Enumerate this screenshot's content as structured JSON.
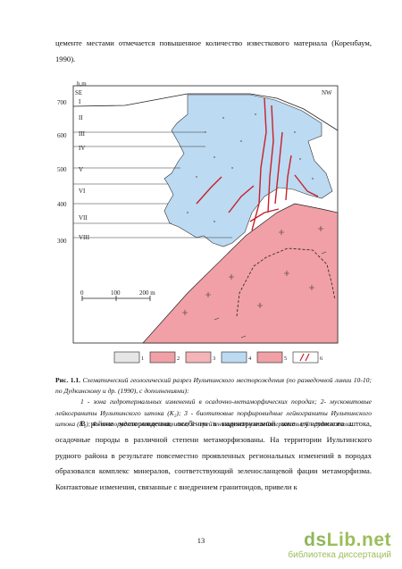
{
  "top_text": "цементе местами отмечается повышенное количество известкового материала (Коренбаум, 1990).",
  "figure": {
    "y_axis_unit": "h,m",
    "y_ticks": [
      "700",
      "600",
      "500",
      "400",
      "300"
    ],
    "left_corner": "SE",
    "right_corner": "NW",
    "zones": [
      "I",
      "II",
      "III",
      "IV",
      "V",
      "VI",
      "VII",
      "VIII"
    ],
    "scale_bar": {
      "labels": [
        "0",
        "100",
        "200 m"
      ]
    },
    "legend": [
      "1",
      "2",
      "3",
      "4",
      "5",
      "6"
    ],
    "colors": {
      "zone": "#e6e6e6",
      "granite": "#f0a0a6",
      "porphyry": "#f4b4b8",
      "metasomatite": "#bcdaf2",
      "ore": "#c8202a",
      "line": "#222222"
    }
  },
  "caption": {
    "label": "Рис. 1.1.",
    "title": "Схематический геологический разрез Иультинского месторождения (по разведочной линии 10-10; по Дудкинскому и др. (1990), с дополнениями):",
    "legend_text": "1 - зона гидротермальных изменений в осадочно-метаморфических породах; 2- мусковитовые лейкограниты Иультинского штока (K₂); 3 - биотитовые порфировидные лейкограниты Иультинского штока (K₂); 4 - околорудные метасоматиты; 5 - грейзенизированные лейкограниты; 6 - рудные тела."
  },
  "bottom_text": {
    "p1": "В районе месторождения, особенно в надинтрузивной зоне иультинского штока, осадочные породы в различной степени метаморфизованы. На территории Иультинского рудного района в результате повсеместно проявленных региональных изменений в породах образовался комплекс минералов, соответствующий зеленосланцевой фации метаморфизма. Контактовые изменения, связанные с внедрением гранитоидов, привели к"
  },
  "page_number": "13",
  "watermark": {
    "logo_prefix": "ds",
    "logo_suffix": "Lib.net",
    "subtitle": "библиотека диссертаций"
  }
}
